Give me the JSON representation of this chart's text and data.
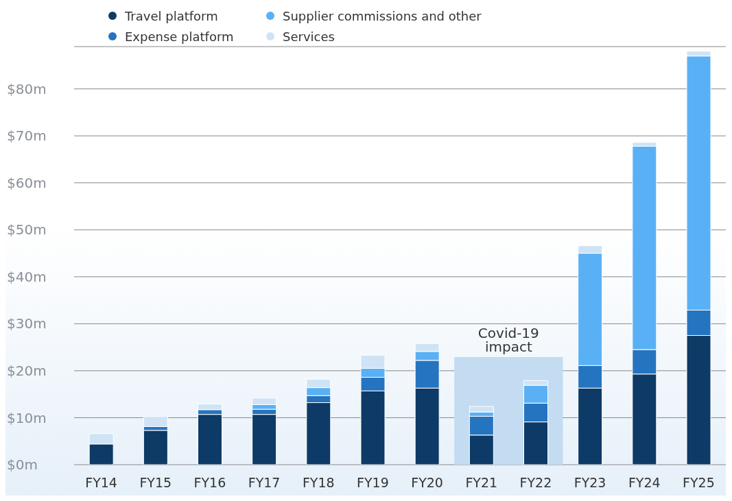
{
  "chart_data": {
    "type": "bar",
    "stacked": true,
    "categories": [
      "FY14",
      "FY15",
      "FY16",
      "FY17",
      "FY18",
      "FY19",
      "FY20",
      "FY21",
      "FY22",
      "FY23",
      "FY24",
      "FY25"
    ],
    "series": [
      {
        "name": "Travel platform",
        "color": "#0d3a66",
        "values": [
          4.4,
          7.3,
          10.7,
          10.7,
          13.2,
          15.7,
          16.3,
          6.3,
          9.1,
          16.3,
          19.3,
          27.5
        ]
      },
      {
        "name": "Expense platform",
        "color": "#2574c0",
        "values": [
          0,
          0.8,
          1.0,
          1.1,
          1.5,
          2.9,
          5.9,
          4.0,
          4.0,
          4.8,
          5.2,
          5.4
        ]
      },
      {
        "name": "Supplier commissions and other",
        "color": "#5ab0f5",
        "values": [
          0,
          0,
          0,
          1.0,
          1.7,
          1.9,
          1.9,
          0.9,
          3.8,
          23.9,
          43.3,
          54.1
        ]
      },
      {
        "name": "Services",
        "color": "#cfe3f5",
        "values": [
          2.2,
          2.2,
          1.2,
          1.4,
          1.8,
          2.8,
          1.7,
          1.2,
          1.0,
          1.6,
          0.8,
          1.0
        ]
      }
    ],
    "ylim": [
      0,
      89
    ],
    "yticks": [
      {
        "value": 0,
        "label": "$0m"
      },
      {
        "value": 10,
        "label": "$10m"
      },
      {
        "value": 20,
        "label": "$20m"
      },
      {
        "value": 30,
        "label": "$30m"
      },
      {
        "value": 40,
        "label": "$40m"
      },
      {
        "value": 50,
        "label": "$50m"
      },
      {
        "value": 60,
        "label": "$60m"
      },
      {
        "value": 70,
        "label": "$70m"
      },
      {
        "value": 80,
        "label": "$80m"
      }
    ],
    "grid": "y",
    "legend": "top left",
    "annotations": [
      "Covid-19 impact"
    ]
  }
}
